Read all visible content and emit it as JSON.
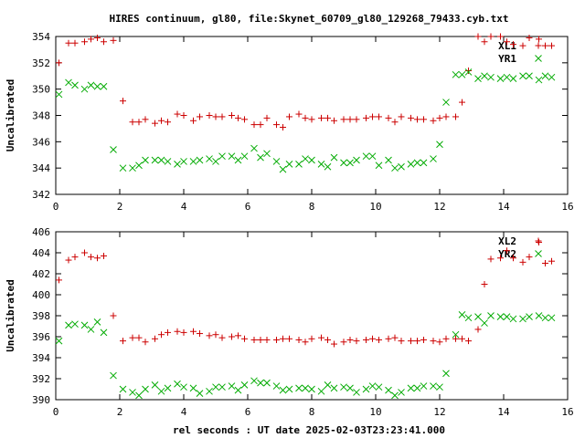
{
  "chart_title": "HIRES continuum, gl80, file:Skynet_60709_gl80_129268_79433.cyb.txt",
  "xlabel": "rel seconds : UT date 2025-02-03T23:23:41.000",
  "chart_data": [
    {
      "type": "scatter",
      "title": "HIRES continuum, gl80, file:Skynet_60709_gl80_129268_79433.cyb.txt",
      "xlabel": "",
      "ylabel": "Uncalibrated",
      "xlim": [
        0,
        16
      ],
      "ylim": [
        342,
        354
      ],
      "xticks": [
        "0",
        "2",
        "4",
        "6",
        "8",
        "10",
        "12",
        "14",
        "16"
      ],
      "yticks": [
        "342",
        "344",
        "346",
        "348",
        "350",
        "352",
        "354"
      ],
      "legend_position": "top-right",
      "grid": false,
      "series": [
        {
          "name": "XL1",
          "marker": "plus",
          "color": "#cc0000",
          "x": [
            0.1,
            0.4,
            0.6,
            0.9,
            1.1,
            1.3,
            1.5,
            1.8,
            2.1,
            2.4,
            2.6,
            2.8,
            3.1,
            3.3,
            3.5,
            3.8,
            4.0,
            4.3,
            4.5,
            4.8,
            5.0,
            5.2,
            5.5,
            5.7,
            5.9,
            6.2,
            6.4,
            6.6,
            6.9,
            7.1,
            7.3,
            7.6,
            7.8,
            8.0,
            8.3,
            8.5,
            8.7,
            9.0,
            9.2,
            9.4,
            9.7,
            9.9,
            10.1,
            10.4,
            10.6,
            10.8,
            11.1,
            11.3,
            11.5,
            11.8,
            12.0,
            12.2,
            12.5,
            12.7,
            12.9,
            13.2,
            13.4,
            13.6,
            13.9,
            14.1,
            14.3,
            14.6,
            14.8,
            15.1,
            15.3,
            15.5
          ],
          "y": [
            352.0,
            353.5,
            353.5,
            353.6,
            353.8,
            353.9,
            353.6,
            353.7,
            349.1,
            347.5,
            347.5,
            347.7,
            347.4,
            347.6,
            347.5,
            348.1,
            348.0,
            347.6,
            347.9,
            348.0,
            347.9,
            347.9,
            348.0,
            347.8,
            347.7,
            347.3,
            347.3,
            347.8,
            347.3,
            347.1,
            347.9,
            348.1,
            347.8,
            347.7,
            347.8,
            347.8,
            347.6,
            347.7,
            347.7,
            347.7,
            347.8,
            347.9,
            347.9,
            347.8,
            347.5,
            347.9,
            347.8,
            347.7,
            347.7,
            347.6,
            347.8,
            347.9,
            347.9,
            349.0,
            351.4,
            354.0,
            353.6,
            354.0,
            354.0,
            353.6,
            353.4,
            353.3,
            353.9,
            353.8,
            353.3,
            353.3
          ]
        },
        {
          "name": "YR1",
          "marker": "cross",
          "color": "#00aa00",
          "x": [
            0.1,
            0.4,
            0.6,
            0.9,
            1.1,
            1.3,
            1.5,
            1.8,
            2.1,
            2.4,
            2.6,
            2.8,
            3.1,
            3.3,
            3.5,
            3.8,
            4.0,
            4.3,
            4.5,
            4.8,
            5.0,
            5.2,
            5.5,
            5.7,
            5.9,
            6.2,
            6.4,
            6.6,
            6.9,
            7.1,
            7.3,
            7.6,
            7.8,
            8.0,
            8.3,
            8.5,
            8.7,
            9.0,
            9.2,
            9.4,
            9.7,
            9.9,
            10.1,
            10.4,
            10.6,
            10.8,
            11.1,
            11.3,
            11.5,
            11.8,
            12.0,
            12.2,
            12.5,
            12.7,
            12.9,
            13.2,
            13.4,
            13.6,
            13.9,
            14.1,
            14.3,
            14.6,
            14.8,
            15.1,
            15.3,
            15.5
          ],
          "y": [
            349.6,
            350.5,
            350.3,
            350.0,
            350.3,
            350.2,
            350.2,
            345.4,
            344.0,
            344.0,
            344.2,
            344.6,
            344.6,
            344.6,
            344.5,
            344.3,
            344.5,
            344.5,
            344.6,
            344.7,
            344.5,
            344.9,
            344.9,
            344.6,
            344.9,
            345.5,
            344.8,
            345.1,
            344.5,
            343.9,
            344.3,
            344.3,
            344.7,
            344.6,
            344.3,
            344.1,
            344.8,
            344.4,
            344.4,
            344.6,
            344.9,
            344.9,
            344.2,
            344.6,
            344.0,
            344.1,
            344.3,
            344.4,
            344.4,
            344.7,
            345.8,
            349.0,
            351.1,
            351.1,
            351.3,
            350.8,
            351.0,
            350.9,
            350.8,
            350.9,
            350.8,
            351.0,
            351.0,
            350.7,
            351.0,
            350.9
          ]
        }
      ]
    },
    {
      "type": "scatter",
      "title": "",
      "xlabel": "rel seconds : UT date 2025-02-03T23:23:41.000",
      "ylabel": "Uncalibrated",
      "xlim": [
        0,
        16
      ],
      "ylim": [
        390,
        406
      ],
      "xticks": [
        "0",
        "2",
        "4",
        "6",
        "8",
        "10",
        "12",
        "14",
        "16"
      ],
      "yticks": [
        "390",
        "392",
        "394",
        "396",
        "398",
        "400",
        "402",
        "404",
        "406"
      ],
      "legend_position": "top-right",
      "grid": false,
      "series": [
        {
          "name": "XL2",
          "marker": "plus",
          "color": "#cc0000",
          "x": [
            0.1,
            0.4,
            0.6,
            0.9,
            1.1,
            1.3,
            1.5,
            1.8,
            2.1,
            2.4,
            2.6,
            2.8,
            3.1,
            3.3,
            3.5,
            3.8,
            4.0,
            4.3,
            4.5,
            4.8,
            5.0,
            5.2,
            5.5,
            5.7,
            5.9,
            6.2,
            6.4,
            6.6,
            6.9,
            7.1,
            7.3,
            7.6,
            7.8,
            8.0,
            8.3,
            8.5,
            8.7,
            9.0,
            9.2,
            9.4,
            9.7,
            9.9,
            10.1,
            10.4,
            10.6,
            10.8,
            11.1,
            11.3,
            11.5,
            11.8,
            12.0,
            12.2,
            12.5,
            12.7,
            12.9,
            13.2,
            13.4,
            13.6,
            13.9,
            14.1,
            14.3,
            14.6,
            14.8,
            15.1,
            15.3,
            15.5
          ],
          "y": [
            401.4,
            403.3,
            403.6,
            404.0,
            403.6,
            403.5,
            403.7,
            398.0,
            395.6,
            395.9,
            395.9,
            395.5,
            395.8,
            396.2,
            396.4,
            396.5,
            396.4,
            396.5,
            396.3,
            396.1,
            396.2,
            395.9,
            396.0,
            396.1,
            395.8,
            395.7,
            395.7,
            395.7,
            395.7,
            395.8,
            395.8,
            395.7,
            395.5,
            395.8,
            395.9,
            395.7,
            395.3,
            395.5,
            395.7,
            395.6,
            395.7,
            395.8,
            395.7,
            395.8,
            395.9,
            395.6,
            395.6,
            395.6,
            395.7,
            395.6,
            395.5,
            395.8,
            395.8,
            395.8,
            395.6,
            396.7,
            401.0,
            403.4,
            403.5,
            404.2,
            403.5,
            403.1,
            403.6,
            405.0,
            403.0,
            403.2
          ]
        },
        {
          "name": "YR2",
          "marker": "cross",
          "color": "#00aa00",
          "x": [
            0.1,
            0.4,
            0.6,
            0.9,
            1.1,
            1.3,
            1.5,
            1.8,
            2.1,
            2.4,
            2.6,
            2.8,
            3.1,
            3.3,
            3.5,
            3.8,
            4.0,
            4.3,
            4.5,
            4.8,
            5.0,
            5.2,
            5.5,
            5.7,
            5.9,
            6.2,
            6.4,
            6.6,
            6.9,
            7.1,
            7.3,
            7.6,
            7.8,
            8.0,
            8.3,
            8.5,
            8.7,
            9.0,
            9.2,
            9.4,
            9.7,
            9.9,
            10.1,
            10.4,
            10.6,
            10.8,
            11.1,
            11.3,
            11.5,
            11.8,
            12.0,
            12.2,
            12.5,
            12.7,
            12.9,
            13.2,
            13.4,
            13.6,
            13.9,
            14.1,
            14.3,
            14.6,
            14.8,
            15.1,
            15.3,
            15.5
          ],
          "y": [
            395.6,
            397.1,
            397.2,
            397.1,
            396.7,
            397.4,
            396.4,
            392.3,
            391.0,
            390.7,
            390.4,
            391.0,
            391.4,
            390.8,
            391.1,
            391.5,
            391.2,
            391.1,
            390.6,
            390.8,
            391.2,
            391.2,
            391.3,
            390.9,
            391.4,
            391.8,
            391.6,
            391.6,
            391.3,
            390.9,
            391.0,
            391.1,
            391.1,
            391.0,
            390.8,
            391.4,
            391.1,
            391.2,
            391.1,
            390.7,
            391.0,
            391.3,
            391.2,
            390.9,
            390.4,
            390.7,
            391.1,
            391.1,
            391.3,
            391.3,
            391.2,
            392.5,
            396.2,
            398.1,
            397.8,
            397.9,
            397.3,
            398.0,
            397.9,
            397.9,
            397.7,
            397.7,
            397.9,
            398.0,
            397.8,
            397.8
          ]
        }
      ]
    }
  ]
}
